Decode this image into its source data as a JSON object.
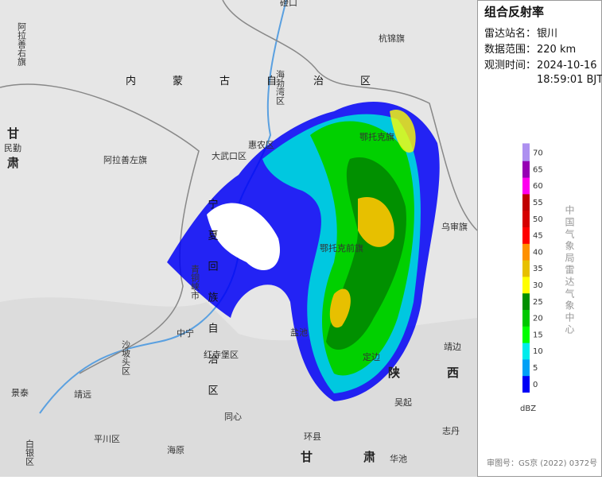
{
  "panel": {
    "title": "组合反射率",
    "station_label": "雷达站名：",
    "station": "银川",
    "range_label": "数据范围：",
    "range": "220 km",
    "time_label": "观测时间：",
    "date": "2024-10-16",
    "time": "18:59:01 BJT",
    "agency": "中国气象局雷达气象中心",
    "unit": "dBZ",
    "approval": "审图号：GS京 (2022) 0372号"
  },
  "legend": {
    "levels": [
      {
        "value": 0,
        "color": "#0000f6"
      },
      {
        "value": 5,
        "color": "#01a0f6"
      },
      {
        "value": 10,
        "color": "#00ecec"
      },
      {
        "value": 15,
        "color": "#01ff00"
      },
      {
        "value": 20,
        "color": "#00c800"
      },
      {
        "value": 25,
        "color": "#019000"
      },
      {
        "value": 30,
        "color": "#ffff00"
      },
      {
        "value": 35,
        "color": "#e7c000"
      },
      {
        "value": 40,
        "color": "#ff9000"
      },
      {
        "value": 45,
        "color": "#ff0000"
      },
      {
        "value": 50,
        "color": "#d60000"
      },
      {
        "value": 55,
        "color": "#c00000"
      },
      {
        "value": 60,
        "color": "#ff00f0"
      },
      {
        "value": 65,
        "color": "#9600b4"
      },
      {
        "value": 70,
        "color": "#ad90f0"
      }
    ]
  },
  "map": {
    "labels": [
      "磴口",
      "阿拉善右旗",
      "杭锦旗",
      "内蒙古自治区",
      "海勃湾区",
      "甘肃",
      "民勤",
      "阿拉善左旗",
      "惠农区",
      "大武口区",
      "鄂托克旗",
      "乌审旗",
      "鄂托克前旗",
      "宁夏回族自治区",
      "青铜峡市",
      "中宁",
      "沙坡头区",
      "红寺堡区",
      "盐池",
      "定边",
      "靖边",
      "陕",
      "西",
      "景泰",
      "靖远",
      "吴起",
      "同心",
      "志丹",
      "平川区",
      "环县",
      "白银区",
      "海原",
      "甘",
      "肃",
      "华池"
    ]
  }
}
